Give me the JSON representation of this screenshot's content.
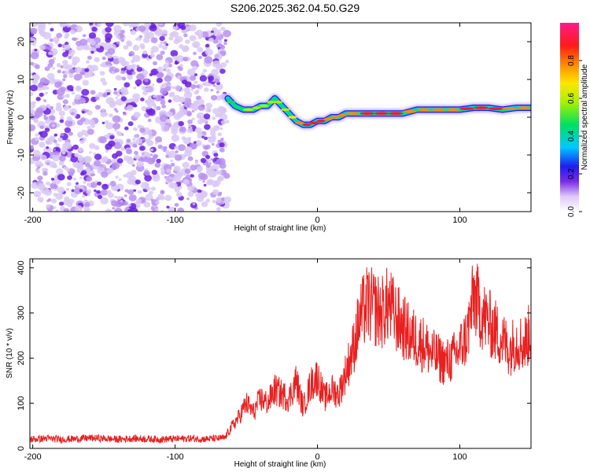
{
  "title": "S206.2025.362.04.50.G29",
  "chart_data": [
    {
      "type": "heatmap",
      "title": "S206.2025.362.04.50.G29",
      "xlabel": "Height of straight line (km)",
      "ylabel": "Frequency (Hz)",
      "xlim": [
        -202,
        150
      ],
      "ylim": [
        -25,
        25
      ],
      "xticks": [
        -200,
        -100,
        0,
        100
      ],
      "yticks": [
        -20,
        -10,
        0,
        10,
        20
      ],
      "noise_region_x": [
        -202,
        -63
      ],
      "ridge": {
        "x": [
          -63,
          -58,
          -52,
          -45,
          -40,
          -35,
          -30,
          -25,
          -20,
          -15,
          -10,
          -5,
          0,
          5,
          10,
          15,
          20,
          30,
          40,
          50,
          60,
          70,
          80,
          90,
          100,
          110,
          120,
          130,
          140,
          150
        ],
        "freq": [
          5,
          3,
          2,
          2,
          3,
          3,
          5,
          3,
          1,
          -1,
          -2,
          -2,
          -1,
          -1,
          0,
          0,
          1,
          1,
          1,
          1,
          1,
          2,
          2,
          2,
          2,
          2.5,
          2.5,
          2,
          2.5,
          2.5
        ],
        "amplitude": [
          0.5,
          0.4,
          0.45,
          0.5,
          0.55,
          0.6,
          0.5,
          0.55,
          0.6,
          0.7,
          0.8,
          0.85,
          0.9,
          0.8,
          0.75,
          0.7,
          0.75,
          0.8,
          0.85,
          0.9,
          0.85,
          0.7,
          0.8,
          0.75,
          0.8,
          0.9,
          0.85,
          0.8,
          0.7,
          0.75
        ]
      },
      "colorbar": {
        "label": "Normalized spectral amplitude",
        "range": [
          0,
          1
        ],
        "ticks": [
          "0.0",
          "0.2",
          "0.4",
          "0.6",
          "0.8"
        ]
      }
    },
    {
      "type": "line",
      "xlabel": "Height of straight line (km)",
      "ylabel": "SNR (10 * v/v)",
      "xlim": [
        -202,
        150
      ],
      "ylim": [
        0,
        420
      ],
      "xticks": [
        -200,
        -100,
        0,
        100
      ],
      "yticks": [
        0,
        100,
        200,
        300,
        400
      ],
      "color": "#e82020",
      "series": [
        {
          "name": "SNR",
          "x": [
            -202,
            -190,
            -180,
            -170,
            -160,
            -150,
            -140,
            -130,
            -120,
            -110,
            -100,
            -90,
            -80,
            -70,
            -65,
            -62,
            -55,
            -50,
            -45,
            -40,
            -35,
            -30,
            -25,
            -20,
            -15,
            -10,
            -5,
            0,
            5,
            10,
            15,
            20,
            25,
            30,
            35,
            40,
            45,
            50,
            55,
            60,
            65,
            70,
            75,
            80,
            85,
            90,
            95,
            100,
            105,
            110,
            115,
            120,
            125,
            130,
            135,
            140,
            145,
            150
          ],
          "y": [
            20,
            22,
            20,
            21,
            23,
            22,
            20,
            22,
            21,
            20,
            21,
            22,
            21,
            22,
            23,
            40,
            70,
            100,
            80,
            110,
            100,
            130,
            120,
            110,
            150,
            90,
            140,
            160,
            110,
            130,
            120,
            170,
            220,
            290,
            320,
            310,
            300,
            320,
            290,
            270,
            250,
            240,
            230,
            210,
            200,
            190,
            200,
            220,
            250,
            340,
            300,
            280,
            260,
            240,
            220,
            240,
            230,
            260
          ]
        }
      ]
    }
  ]
}
